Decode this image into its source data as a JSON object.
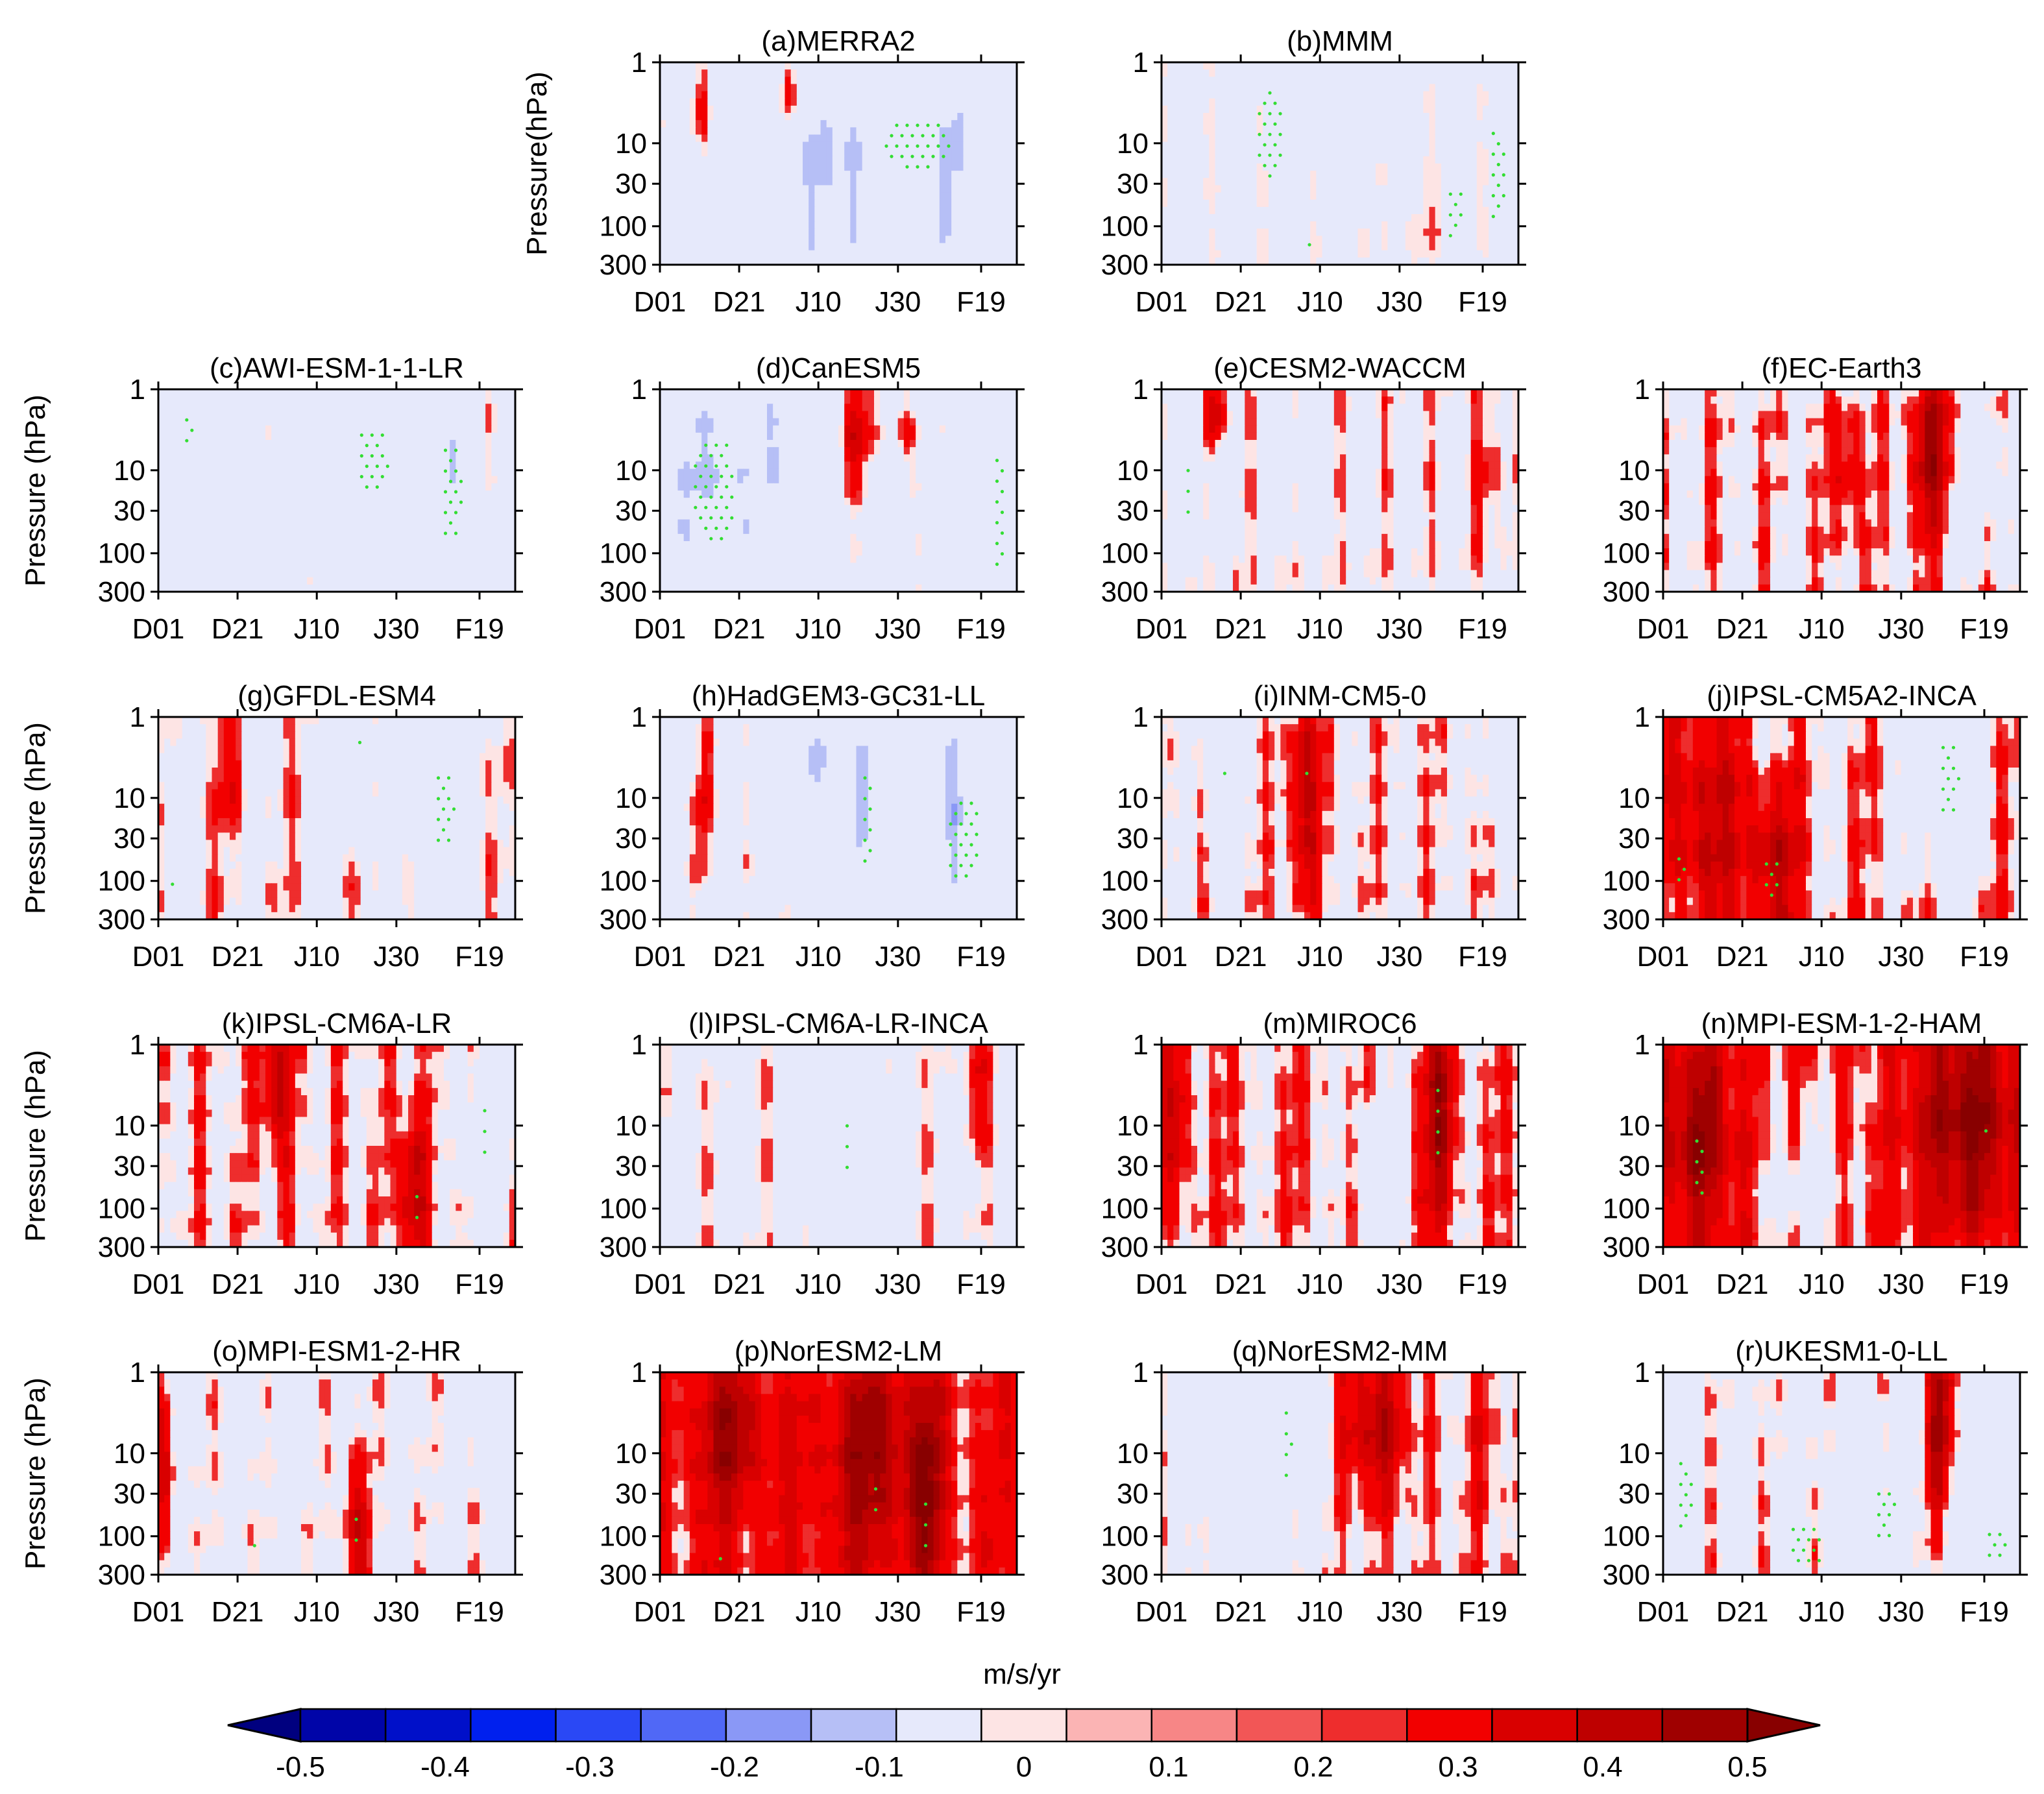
{
  "figure": {
    "x_ticks": [
      "D01",
      "D21",
      "J10",
      "J30",
      "F19"
    ],
    "y_ticks": [
      "1",
      "10",
      "30",
      "100",
      "300"
    ],
    "colorbar": {
      "unit": "m/s/yr",
      "tick_labels": [
        "-0.5",
        "-0.4",
        "-0.3",
        "-0.2",
        "-0.1",
        "0",
        "0.1",
        "0.2",
        "0.3",
        "0.4",
        "0.5"
      ],
      "colors": [
        "#00007f",
        "#0005a8",
        "#0010c9",
        "#0020ee",
        "#2a48f5",
        "#5068f6",
        "#8a98f6",
        "#b6bff6",
        "#e6e9fb",
        "#fde4e4",
        "#fbb4b4",
        "#f78686",
        "#f25656",
        "#ee2d2d",
        "#f20000",
        "#d90000",
        "#be0000",
        "#9f0000",
        "#880000"
      ]
    }
  },
  "chart_data": [
    {
      "panel": "a",
      "type": "heatmap",
      "title": "(a)MERRA2",
      "ylabel": "Pressure(hPa)",
      "ylim": [
        1,
        300
      ],
      "y_scale": "log",
      "y_reversed": true,
      "x_range": [
        "D01",
        "F28"
      ],
      "bias": -0.15,
      "variability": 0.12,
      "seed": 11,
      "blobs": [
        {
          "x": 0.48,
          "y": 0.55,
          "w": 0.14,
          "h": 0.5,
          "amp": -0.38
        },
        {
          "x": 0.8,
          "y": 0.55,
          "w": 0.14,
          "h": 0.5,
          "amp": -0.35
        },
        {
          "x": 0.35,
          "y": 0.15,
          "w": 0.03,
          "h": 0.22,
          "amp": 0.35
        },
        {
          "x": 0.1,
          "y": 0.2,
          "w": 0.04,
          "h": 0.3,
          "amp": 0.2
        }
      ],
      "stipple": [
        {
          "x": 0.72,
          "y": 0.4,
          "w": 0.2,
          "h": 0.28
        }
      ]
    },
    {
      "panel": "b",
      "type": "heatmap",
      "title": "(b)MMM",
      "ylabel": "",
      "ylim": [
        1,
        300
      ],
      "y_scale": "log",
      "y_reversed": true,
      "x_range": [
        "D01",
        "F28"
      ],
      "bias": -0.04,
      "variability": 0.05,
      "seed": 12,
      "blobs": [
        {
          "x": 0.5,
          "y": 0.2,
          "w": 0.15,
          "h": 0.3,
          "amp": -0.06
        },
        {
          "x": 0.75,
          "y": 0.8,
          "w": 0.1,
          "h": 0.2,
          "amp": 0.06
        }
      ],
      "stipple": [
        {
          "x": 0.3,
          "y": 0.35,
          "w": 0.08,
          "h": 0.5
        },
        {
          "x": 0.94,
          "y": 0.55,
          "w": 0.05,
          "h": 0.5
        },
        {
          "x": 0.82,
          "y": 0.75,
          "w": 0.05,
          "h": 0.3
        },
        {
          "x": 0.42,
          "y": 0.9,
          "w": 0.04,
          "h": 0.1
        }
      ]
    },
    {
      "panel": "c",
      "type": "heatmap",
      "title": "(c)AWI-ESM-1-1-LR",
      "ylabel": "Pressure (hPa)",
      "ylim": [
        1,
        300
      ],
      "y_scale": "log",
      "y_reversed": true,
      "x_range": [
        "D01",
        "F28"
      ],
      "bias": -0.12,
      "variability": 0.1,
      "seed": 21,
      "blobs": [
        {
          "x": 0.08,
          "y": 0.35,
          "w": 0.05,
          "h": 0.4,
          "amp": -0.3
        },
        {
          "x": 0.6,
          "y": 0.35,
          "w": 0.1,
          "h": 0.4,
          "amp": -0.28
        },
        {
          "x": 0.82,
          "y": 0.4,
          "w": 0.07,
          "h": 0.5,
          "amp": -0.3
        },
        {
          "x": 0.92,
          "y": 0.3,
          "w": 0.03,
          "h": 0.3,
          "amp": 0.12
        }
      ],
      "stipple": [
        {
          "x": 0.6,
          "y": 0.35,
          "w": 0.09,
          "h": 0.35
        },
        {
          "x": 0.82,
          "y": 0.5,
          "w": 0.06,
          "h": 0.5
        },
        {
          "x": 0.08,
          "y": 0.2,
          "w": 0.03,
          "h": 0.2
        }
      ]
    },
    {
      "panel": "d",
      "type": "heatmap",
      "title": "(d)CanESM5",
      "ylabel": "",
      "ylim": [
        1,
        300
      ],
      "y_scale": "log",
      "y_reversed": true,
      "x_range": [
        "D01",
        "F28"
      ],
      "bias": -0.14,
      "variability": 0.12,
      "seed": 22,
      "blobs": [
        {
          "x": 0.15,
          "y": 0.45,
          "w": 0.14,
          "h": 0.6,
          "amp": -0.38
        },
        {
          "x": 0.35,
          "y": 0.35,
          "w": 0.06,
          "h": 0.5,
          "amp": -0.32
        },
        {
          "x": 0.55,
          "y": 0.2,
          "w": 0.05,
          "h": 0.3,
          "amp": 0.35
        },
        {
          "x": 0.68,
          "y": 0.2,
          "w": 0.04,
          "h": 0.3,
          "amp": 0.3
        },
        {
          "x": 0.95,
          "y": 0.55,
          "w": 0.05,
          "h": 0.7,
          "amp": -0.35
        }
      ],
      "stipple": [
        {
          "x": 0.15,
          "y": 0.5,
          "w": 0.13,
          "h": 0.55
        },
        {
          "x": 0.95,
          "y": 0.6,
          "w": 0.04,
          "h": 0.6
        }
      ]
    },
    {
      "panel": "e",
      "type": "heatmap",
      "title": "(e)CESM2-WACCM",
      "ylabel": "",
      "ylim": [
        1,
        300
      ],
      "y_scale": "log",
      "y_reversed": true,
      "x_range": [
        "D01",
        "F28"
      ],
      "bias": -0.03,
      "variability": 0.1,
      "seed": 23,
      "blobs": [
        {
          "x": 0.07,
          "y": 0.4,
          "w": 0.05,
          "h": 0.4,
          "amp": -0.32
        },
        {
          "x": 0.15,
          "y": 0.12,
          "w": 0.03,
          "h": 0.2,
          "amp": 0.3
        },
        {
          "x": 0.4,
          "y": 0.3,
          "w": 0.06,
          "h": 0.4,
          "amp": -0.15
        },
        {
          "x": 0.92,
          "y": 0.45,
          "w": 0.05,
          "h": 0.35,
          "amp": 0.14
        }
      ],
      "stipple": [
        {
          "x": 0.07,
          "y": 0.5,
          "w": 0.02,
          "h": 0.3
        }
      ]
    },
    {
      "panel": "f",
      "type": "heatmap",
      "title": "(f)EC-Earth3",
      "ylabel": "",
      "ylim": [
        1,
        300
      ],
      "y_scale": "log",
      "y_reversed": true,
      "x_range": [
        "D01",
        "F28"
      ],
      "bias": 0.0,
      "variability": 0.12,
      "seed": 24,
      "blobs": [
        {
          "x": 0.75,
          "y": 0.3,
          "w": 0.06,
          "h": 0.4,
          "amp": 0.38
        },
        {
          "x": 0.52,
          "y": 0.4,
          "w": 0.04,
          "h": 0.4,
          "amp": 0.25
        },
        {
          "x": 0.88,
          "y": 0.4,
          "w": 0.04,
          "h": 0.5,
          "amp": -0.25
        }
      ],
      "stipple": []
    },
    {
      "panel": "g",
      "type": "heatmap",
      "title": "(g)GFDL-ESM4",
      "ylabel": "Pressure (hPa)",
      "ylim": [
        1,
        300
      ],
      "y_scale": "log",
      "y_reversed": true,
      "x_range": [
        "D01",
        "F28"
      ],
      "bias": -0.02,
      "variability": 0.1,
      "seed": 25,
      "blobs": [
        {
          "x": 0.55,
          "y": 0.25,
          "w": 0.05,
          "h": 0.35,
          "amp": -0.28
        },
        {
          "x": 0.8,
          "y": 0.4,
          "w": 0.07,
          "h": 0.45,
          "amp": -0.32
        },
        {
          "x": 0.2,
          "y": 0.3,
          "w": 0.04,
          "h": 0.3,
          "amp": 0.15
        }
      ],
      "stipple": [
        {
          "x": 0.8,
          "y": 0.45,
          "w": 0.06,
          "h": 0.4
        },
        {
          "x": 0.04,
          "y": 0.85,
          "w": 0.03,
          "h": 0.15
        },
        {
          "x": 0.56,
          "y": 0.15,
          "w": 0.02,
          "h": 0.15
        }
      ]
    },
    {
      "panel": "h",
      "type": "heatmap",
      "title": "(h)HadGEM3-GC31-LL",
      "ylabel": "",
      "ylim": [
        1,
        300
      ],
      "y_scale": "log",
      "y_reversed": true,
      "x_range": [
        "D01",
        "F28"
      ],
      "bias": -0.1,
      "variability": 0.12,
      "seed": 26,
      "blobs": [
        {
          "x": 0.4,
          "y": 0.2,
          "w": 0.1,
          "h": 0.35,
          "amp": -0.4
        },
        {
          "x": 0.58,
          "y": 0.4,
          "w": 0.05,
          "h": 0.6,
          "amp": -0.38
        },
        {
          "x": 0.85,
          "y": 0.45,
          "w": 0.1,
          "h": 0.6,
          "amp": -0.4
        },
        {
          "x": 0.12,
          "y": 0.45,
          "w": 0.04,
          "h": 0.4,
          "amp": 0.22
        }
      ],
      "stipple": [
        {
          "x": 0.58,
          "y": 0.5,
          "w": 0.04,
          "h": 0.5
        },
        {
          "x": 0.85,
          "y": 0.6,
          "w": 0.1,
          "h": 0.45
        }
      ]
    },
    {
      "panel": "i",
      "type": "heatmap",
      "title": "(i)INM-CM5-0",
      "ylabel": "",
      "ylim": [
        1,
        300
      ],
      "y_scale": "log",
      "y_reversed": true,
      "x_range": [
        "D01",
        "F28"
      ],
      "bias": 0.0,
      "variability": 0.1,
      "seed": 27,
      "blobs": [
        {
          "x": 0.17,
          "y": 0.3,
          "w": 0.03,
          "h": 0.5,
          "amp": -0.4
        },
        {
          "x": 0.4,
          "y": 0.35,
          "w": 0.04,
          "h": 0.6,
          "amp": 0.35
        },
        {
          "x": 0.95,
          "y": 0.2,
          "w": 0.04,
          "h": 0.3,
          "amp": -0.3
        }
      ],
      "stipple": [
        {
          "x": 0.17,
          "y": 0.3,
          "w": 0.015,
          "h": 0.35
        },
        {
          "x": 0.4,
          "y": 0.3,
          "w": 0.015,
          "h": 0.35
        }
      ]
    },
    {
      "panel": "j",
      "type": "heatmap",
      "title": "(j)IPSL-CM5A2-INCA",
      "ylabel": "",
      "ylim": [
        1,
        300
      ],
      "y_scale": "log",
      "y_reversed": true,
      "x_range": [
        "D01",
        "F28"
      ],
      "bias": 0.02,
      "variability": 0.12,
      "seed": 28,
      "blobs": [
        {
          "x": 0.1,
          "y": 0.5,
          "w": 0.12,
          "h": 0.6,
          "amp": 0.28
        },
        {
          "x": 0.3,
          "y": 0.7,
          "w": 0.08,
          "h": 0.4,
          "amp": 0.3
        },
        {
          "x": 0.8,
          "y": 0.3,
          "w": 0.08,
          "h": 0.5,
          "amp": -0.45
        }
      ],
      "stipple": [
        {
          "x": 0.8,
          "y": 0.3,
          "w": 0.06,
          "h": 0.4
        },
        {
          "x": 0.05,
          "y": 0.75,
          "w": 0.04,
          "h": 0.2
        },
        {
          "x": 0.3,
          "y": 0.8,
          "w": 0.05,
          "h": 0.25
        }
      ]
    },
    {
      "panel": "k",
      "type": "heatmap",
      "title": "(k)IPSL-CM6A-LR",
      "ylabel": "Pressure (hPa)",
      "ylim": [
        1,
        300
      ],
      "y_scale": "log",
      "y_reversed": true,
      "x_range": [
        "D01",
        "F28"
      ],
      "bias": 0.02,
      "variability": 0.1,
      "seed": 29,
      "blobs": [
        {
          "x": 0.33,
          "y": 0.2,
          "w": 0.04,
          "h": 0.35,
          "amp": 0.32
        },
        {
          "x": 0.71,
          "y": 0.7,
          "w": 0.04,
          "h": 0.4,
          "amp": 0.32
        },
        {
          "x": 0.93,
          "y": 0.45,
          "w": 0.05,
          "h": 0.5,
          "amp": -0.38
        }
      ],
      "stipple": [
        {
          "x": 0.91,
          "y": 0.45,
          "w": 0.02,
          "h": 0.35
        },
        {
          "x": 0.72,
          "y": 0.8,
          "w": 0.02,
          "h": 0.2
        }
      ]
    },
    {
      "panel": "l",
      "type": "heatmap",
      "title": "(l)IPSL-CM6A-LR-INCA",
      "ylabel": "",
      "ylim": [
        1,
        300
      ],
      "y_scale": "log",
      "y_reversed": true,
      "x_range": [
        "D01",
        "F28"
      ],
      "bias": -0.04,
      "variability": 0.1,
      "seed": 30,
      "blobs": [
        {
          "x": 0.52,
          "y": 0.45,
          "w": 0.1,
          "h": 0.6,
          "amp": -0.3
        },
        {
          "x": 0.88,
          "y": 0.2,
          "w": 0.04,
          "h": 0.3,
          "amp": 0.2
        }
      ],
      "stipple": [
        {
          "x": 0.52,
          "y": 0.5,
          "w": 0.02,
          "h": 0.3
        }
      ]
    },
    {
      "panel": "m",
      "type": "heatmap",
      "title": "(m)MIROC6",
      "ylabel": "",
      "ylim": [
        1,
        300
      ],
      "y_scale": "log",
      "y_reversed": true,
      "x_range": [
        "D01",
        "F28"
      ],
      "bias": 0.04,
      "variability": 0.1,
      "seed": 31,
      "blobs": [
        {
          "x": 0.04,
          "y": 0.35,
          "w": 0.04,
          "h": 0.5,
          "amp": 0.25
        },
        {
          "x": 0.78,
          "y": 0.35,
          "w": 0.04,
          "h": 0.6,
          "amp": 0.38
        },
        {
          "x": 0.6,
          "y": 0.6,
          "w": 0.06,
          "h": 0.4,
          "amp": -0.2
        }
      ],
      "stipple": [
        {
          "x": 0.77,
          "y": 0.4,
          "w": 0.02,
          "h": 0.45
        }
      ]
    },
    {
      "panel": "n",
      "type": "heatmap",
      "title": "(n)MPI-ESM-1-2-HAM",
      "ylabel": "",
      "ylim": [
        1,
        300
      ],
      "y_scale": "log",
      "y_reversed": true,
      "x_range": [
        "D01",
        "F28"
      ],
      "bias": 0.08,
      "variability": 0.1,
      "seed": 32,
      "blobs": [
        {
          "x": 0.1,
          "y": 0.45,
          "w": 0.1,
          "h": 0.5,
          "amp": 0.38
        },
        {
          "x": 0.85,
          "y": 0.35,
          "w": 0.15,
          "h": 0.55,
          "amp": 0.42
        },
        {
          "x": 0.4,
          "y": 0.75,
          "w": 0.1,
          "h": 0.35,
          "amp": -0.2
        }
      ],
      "stipple": [
        {
          "x": 0.1,
          "y": 0.6,
          "w": 0.04,
          "h": 0.35
        },
        {
          "x": 0.9,
          "y": 0.45,
          "w": 0.02,
          "h": 0.15
        }
      ]
    },
    {
      "panel": "o",
      "type": "heatmap",
      "title": "(o)MPI-ESM1-2-HR",
      "ylabel": "Pressure (hPa)",
      "ylim": [
        1,
        300
      ],
      "y_scale": "log",
      "y_reversed": true,
      "x_range": [
        "D01",
        "F28"
      ],
      "bias": -0.04,
      "variability": 0.1,
      "seed": 33,
      "blobs": [
        {
          "x": 0.37,
          "y": 0.2,
          "w": 0.04,
          "h": 0.3,
          "amp": -0.38
        },
        {
          "x": 0.55,
          "y": 0.75,
          "w": 0.04,
          "h": 0.4,
          "amp": 0.3
        },
        {
          "x": 0.93,
          "y": 0.2,
          "w": 0.03,
          "h": 0.3,
          "amp": -0.35
        },
        {
          "x": 0.02,
          "y": 0.5,
          "w": 0.03,
          "h": 0.4,
          "amp": 0.25
        }
      ],
      "stipple": [
        {
          "x": 0.27,
          "y": 0.88,
          "w": 0.03,
          "h": 0.15
        },
        {
          "x": 0.55,
          "y": 0.8,
          "w": 0.02,
          "h": 0.25
        }
      ]
    },
    {
      "panel": "p",
      "type": "heatmap",
      "title": "(p)NorESM2-LM",
      "ylabel": "",
      "ylim": [
        1,
        300
      ],
      "y_scale": "log",
      "y_reversed": true,
      "x_range": [
        "D01",
        "F28"
      ],
      "bias": 0.12,
      "variability": 0.1,
      "seed": 34,
      "blobs": [
        {
          "x": 0.2,
          "y": 0.3,
          "w": 0.1,
          "h": 0.4,
          "amp": 0.3
        },
        {
          "x": 0.6,
          "y": 0.4,
          "w": 0.14,
          "h": 0.55,
          "amp": 0.32
        },
        {
          "x": 0.75,
          "y": 0.6,
          "w": 0.04,
          "h": 0.5,
          "amp": 0.32
        }
      ],
      "stipple": [
        {
          "x": 0.6,
          "y": 0.65,
          "w": 0.02,
          "h": 0.25
        },
        {
          "x": 0.74,
          "y": 0.75,
          "w": 0.02,
          "h": 0.3
        },
        {
          "x": 0.17,
          "y": 0.92,
          "w": 0.03,
          "h": 0.1
        }
      ]
    },
    {
      "panel": "q",
      "type": "heatmap",
      "title": "(q)NorESM2-MM",
      "ylabel": "",
      "ylim": [
        1,
        300
      ],
      "y_scale": "log",
      "y_reversed": true,
      "x_range": [
        "D01",
        "F28"
      ],
      "bias": 0.0,
      "variability": 0.1,
      "seed": 35,
      "blobs": [
        {
          "x": 0.25,
          "y": 0.3,
          "w": 0.15,
          "h": 0.5,
          "amp": -0.42
        },
        {
          "x": 0.6,
          "y": 0.25,
          "w": 0.1,
          "h": 0.4,
          "amp": 0.35
        },
        {
          "x": 0.9,
          "y": 0.4,
          "w": 0.06,
          "h": 0.5,
          "amp": 0.12
        }
      ],
      "stipple": [
        {
          "x": 0.35,
          "y": 0.35,
          "w": 0.03,
          "h": 0.4
        }
      ]
    },
    {
      "panel": "r",
      "type": "heatmap",
      "title": "(r)UKESM1-0-LL",
      "ylabel": "",
      "ylim": [
        1,
        300
      ],
      "y_scale": "log",
      "y_reversed": true,
      "x_range": [
        "D01",
        "F28"
      ],
      "bias": -0.05,
      "variability": 0.12,
      "seed": 36,
      "blobs": [
        {
          "x": 0.03,
          "y": 0.4,
          "w": 0.04,
          "h": 0.6,
          "amp": -0.3
        },
        {
          "x": 0.55,
          "y": 0.55,
          "w": 0.06,
          "h": 0.45,
          "amp": -0.35
        },
        {
          "x": 0.78,
          "y": 0.25,
          "w": 0.04,
          "h": 0.45,
          "amp": 0.45
        },
        {
          "x": 0.92,
          "y": 0.35,
          "w": 0.06,
          "h": 0.5,
          "amp": -0.38
        }
      ],
      "stipple": [
        {
          "x": 0.06,
          "y": 0.6,
          "w": 0.05,
          "h": 0.4
        },
        {
          "x": 0.4,
          "y": 0.85,
          "w": 0.1,
          "h": 0.25
        },
        {
          "x": 0.62,
          "y": 0.7,
          "w": 0.06,
          "h": 0.3
        },
        {
          "x": 0.93,
          "y": 0.85,
          "w": 0.06,
          "h": 0.2
        },
        {
          "x": 0.78,
          "y": 0.2,
          "w": 0.015,
          "h": 0.2
        }
      ]
    }
  ]
}
